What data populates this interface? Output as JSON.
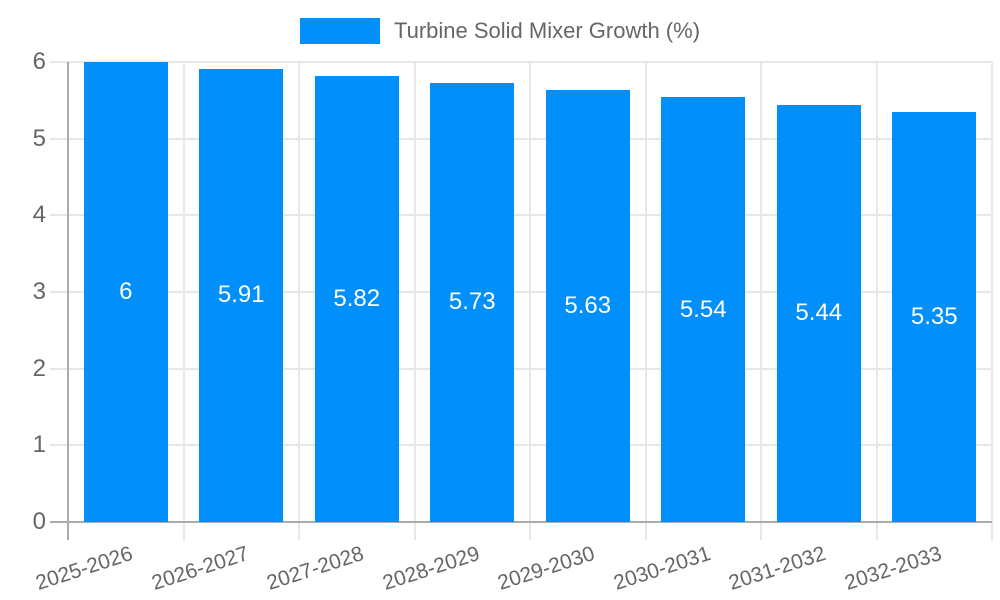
{
  "legend": {
    "series_label": "Turbine Solid Mixer Growth (%)"
  },
  "chart_data": {
    "type": "bar",
    "title": "Turbine Solid Mixer Growth (%)",
    "categories": [
      "2025-2026",
      "2026-2027",
      "2027-2028",
      "2028-2029",
      "2029-2030",
      "2030-2031",
      "2031-2032",
      "2032-2033"
    ],
    "series": [
      {
        "name": "Turbine Solid Mixer Growth (%)",
        "values": [
          6,
          5.91,
          5.82,
          5.73,
          5.63,
          5.54,
          5.44,
          5.35
        ],
        "value_labels": [
          "6",
          "5.91",
          "5.82",
          "5.73",
          "5.63",
          "5.54",
          "5.44",
          "5.35"
        ],
        "color": "#008FFB"
      }
    ],
    "xlabel": "",
    "ylabel": "",
    "ylim": [
      0,
      6
    ],
    "yticks": [
      0,
      1,
      2,
      3,
      4,
      5,
      6
    ],
    "ytick_labels": [
      "0",
      "1",
      "2",
      "3",
      "4",
      "5",
      "6"
    ],
    "grid": true,
    "legend_position": "top",
    "colors": {
      "bar": "#008FFB",
      "bar_label": "#ffffff",
      "grid": "#e7e7e7",
      "axis": "#ababab",
      "tick_label": "#666666"
    }
  }
}
